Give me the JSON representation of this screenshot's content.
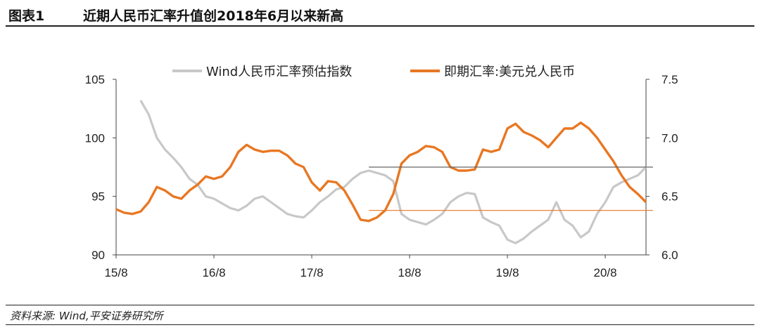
{
  "header": {
    "figure_label": "图表1",
    "title": "近期人民币汇率升值创2018年6月以来新高"
  },
  "footer": {
    "source": "资料来源: Wind,平安证券研究所"
  },
  "colors": {
    "index_series": "#c8c8c8",
    "fx_series": "#e87722",
    "ref_gray": "#666666",
    "ref_orange": "#e87722",
    "axis": "#444444"
  },
  "chart_data": {
    "type": "line",
    "xticks": [
      "15/8",
      "16/8",
      "17/8",
      "18/8",
      "19/8",
      "20/8"
    ],
    "xrange": [
      "2015-08",
      "2021-01"
    ],
    "left_axis": {
      "ticks": [
        90,
        95,
        100,
        105
      ],
      "range": [
        90,
        105
      ]
    },
    "right_axis": {
      "ticks": [
        6.0,
        6.5,
        7.0,
        7.5
      ],
      "range": [
        6.0,
        7.5
      ]
    },
    "legend": {
      "position": "top-center"
    },
    "reference_lines": [
      {
        "axis": "left",
        "value": 97.5,
        "from": "2018-03",
        "color": "gray"
      },
      {
        "axis": "right",
        "value": 6.38,
        "from": "2018-03",
        "color": "orange"
      }
    ],
    "series": [
      {
        "name": "Wind人民币汇率预估指数",
        "axis": "left",
        "color": "#c8c8c8",
        "points": [
          [
            "2015-11",
            103.2
          ],
          [
            "2015-12",
            102.0
          ],
          [
            "2016-01",
            100.0
          ],
          [
            "2016-02",
            99.0
          ],
          [
            "2016-03",
            98.3
          ],
          [
            "2016-04",
            97.5
          ],
          [
            "2016-05",
            96.5
          ],
          [
            "2016-06",
            96.0
          ],
          [
            "2016-07",
            95.0
          ],
          [
            "2016-08",
            94.8
          ],
          [
            "2016-09",
            94.4
          ],
          [
            "2016-10",
            94.0
          ],
          [
            "2016-11",
            93.8
          ],
          [
            "2016-12",
            94.2
          ],
          [
            "2017-01",
            94.8
          ],
          [
            "2017-02",
            95.0
          ],
          [
            "2017-03",
            94.5
          ],
          [
            "2017-04",
            94.0
          ],
          [
            "2017-05",
            93.5
          ],
          [
            "2017-06",
            93.3
          ],
          [
            "2017-07",
            93.2
          ],
          [
            "2017-08",
            93.8
          ],
          [
            "2017-09",
            94.5
          ],
          [
            "2017-10",
            95.0
          ],
          [
            "2017-11",
            95.6
          ],
          [
            "2017-12",
            95.8
          ],
          [
            "2018-01",
            96.5
          ],
          [
            "2018-02",
            97.0
          ],
          [
            "2018-03",
            97.2
          ],
          [
            "2018-04",
            97.0
          ],
          [
            "2018-05",
            96.8
          ],
          [
            "2018-06",
            96.3
          ],
          [
            "2018-07",
            93.5
          ],
          [
            "2018-08",
            93.0
          ],
          [
            "2018-09",
            92.8
          ],
          [
            "2018-10",
            92.6
          ],
          [
            "2018-11",
            93.0
          ],
          [
            "2018-12",
            93.5
          ],
          [
            "2019-01",
            94.5
          ],
          [
            "2019-02",
            95.0
          ],
          [
            "2019-03",
            95.3
          ],
          [
            "2019-04",
            95.2
          ],
          [
            "2019-05",
            93.2
          ],
          [
            "2019-06",
            92.8
          ],
          [
            "2019-07",
            92.5
          ],
          [
            "2019-08",
            91.3
          ],
          [
            "2019-09",
            91.0
          ],
          [
            "2019-10",
            91.4
          ],
          [
            "2019-11",
            92.0
          ],
          [
            "2019-12",
            92.5
          ],
          [
            "2020-01",
            93.0
          ],
          [
            "2020-02",
            94.5
          ],
          [
            "2020-03",
            93.0
          ],
          [
            "2020-04",
            92.5
          ],
          [
            "2020-05",
            91.5
          ],
          [
            "2020-06",
            92.0
          ],
          [
            "2020-07",
            93.5
          ],
          [
            "2020-08",
            94.5
          ],
          [
            "2020-09",
            95.8
          ],
          [
            "2020-10",
            96.2
          ],
          [
            "2020-11",
            96.5
          ],
          [
            "2020-12",
            96.8
          ],
          [
            "2021-01",
            97.5
          ]
        ]
      },
      {
        "name": "即期汇率:美元兑人民币",
        "axis": "right",
        "color": "#e87722",
        "points": [
          [
            "2015-08",
            6.39
          ],
          [
            "2015-09",
            6.36
          ],
          [
            "2015-10",
            6.35
          ],
          [
            "2015-11",
            6.37
          ],
          [
            "2015-12",
            6.45
          ],
          [
            "2016-01",
            6.58
          ],
          [
            "2016-02",
            6.55
          ],
          [
            "2016-03",
            6.5
          ],
          [
            "2016-04",
            6.48
          ],
          [
            "2016-05",
            6.55
          ],
          [
            "2016-06",
            6.6
          ],
          [
            "2016-07",
            6.67
          ],
          [
            "2016-08",
            6.65
          ],
          [
            "2016-09",
            6.67
          ],
          [
            "2016-10",
            6.75
          ],
          [
            "2016-11",
            6.88
          ],
          [
            "2016-12",
            6.94
          ],
          [
            "2017-01",
            6.9
          ],
          [
            "2017-02",
            6.88
          ],
          [
            "2017-03",
            6.89
          ],
          [
            "2017-04",
            6.89
          ],
          [
            "2017-05",
            6.85
          ],
          [
            "2017-06",
            6.78
          ],
          [
            "2017-07",
            6.75
          ],
          [
            "2017-08",
            6.62
          ],
          [
            "2017-09",
            6.55
          ],
          [
            "2017-10",
            6.63
          ],
          [
            "2017-11",
            6.62
          ],
          [
            "2017-12",
            6.55
          ],
          [
            "2018-01",
            6.43
          ],
          [
            "2018-02",
            6.3
          ],
          [
            "2018-03",
            6.29
          ],
          [
            "2018-04",
            6.32
          ],
          [
            "2018-05",
            6.38
          ],
          [
            "2018-06",
            6.52
          ],
          [
            "2018-07",
            6.78
          ],
          [
            "2018-08",
            6.85
          ],
          [
            "2018-09",
            6.88
          ],
          [
            "2018-10",
            6.93
          ],
          [
            "2018-11",
            6.92
          ],
          [
            "2018-12",
            6.88
          ],
          [
            "2019-01",
            6.75
          ],
          [
            "2019-02",
            6.72
          ],
          [
            "2019-03",
            6.72
          ],
          [
            "2019-04",
            6.73
          ],
          [
            "2019-05",
            6.9
          ],
          [
            "2019-06",
            6.88
          ],
          [
            "2019-07",
            6.9
          ],
          [
            "2019-08",
            7.08
          ],
          [
            "2019-09",
            7.12
          ],
          [
            "2019-10",
            7.05
          ],
          [
            "2019-11",
            7.02
          ],
          [
            "2019-12",
            6.98
          ],
          [
            "2020-01",
            6.92
          ],
          [
            "2020-02",
            7.0
          ],
          [
            "2020-03",
            7.08
          ],
          [
            "2020-04",
            7.08
          ],
          [
            "2020-05",
            7.13
          ],
          [
            "2020-06",
            7.08
          ],
          [
            "2020-07",
            7.0
          ],
          [
            "2020-08",
            6.9
          ],
          [
            "2020-09",
            6.8
          ],
          [
            "2020-10",
            6.68
          ],
          [
            "2020-11",
            6.58
          ],
          [
            "2020-12",
            6.52
          ],
          [
            "2021-01",
            6.45
          ]
        ]
      }
    ]
  }
}
